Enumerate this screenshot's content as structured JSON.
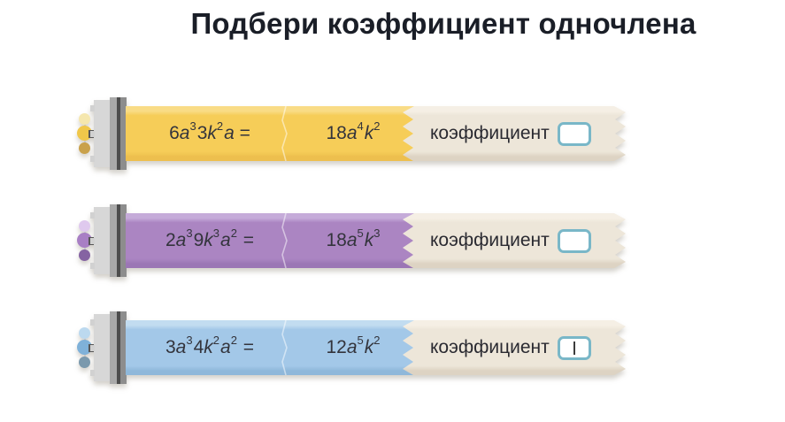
{
  "title": "Подбери коэффициент одночлена",
  "rows": [
    {
      "name": "yellow",
      "expr_left": [
        {
          "t": "6"
        },
        {
          "t": "a",
          "s": "it"
        },
        {
          "t": "3",
          "s": "sup"
        },
        {
          "t": "3"
        },
        {
          "t": "k",
          "s": "it"
        },
        {
          "t": "2",
          "s": "sup"
        },
        {
          "t": "a",
          "s": "it"
        },
        {
          "t": " ="
        }
      ],
      "expr_right": [
        {
          "t": "18"
        },
        {
          "t": "a",
          "s": "it"
        },
        {
          "t": "4",
          "s": "sup"
        },
        {
          "t": "k",
          "s": "it"
        },
        {
          "t": "2",
          "s": "sup"
        }
      ],
      "label": "коэффициент",
      "input_value": "",
      "focused": false,
      "theme": {
        "bar": "#f6cd58",
        "barTop": "#f9dc86",
        "barBottom": "#edbf4e",
        "dotTop": "#f5e7ae",
        "dotMid": "#f0c74a",
        "dotBottom": "#c9a14b"
      }
    },
    {
      "name": "purple",
      "expr_left": [
        {
          "t": "2"
        },
        {
          "t": "a",
          "s": "it"
        },
        {
          "t": "3",
          "s": "sup"
        },
        {
          "t": "9"
        },
        {
          "t": "k",
          "s": "it"
        },
        {
          "t": "3",
          "s": "sup"
        },
        {
          "t": "a",
          "s": "it"
        },
        {
          "t": "2",
          "s": "sup"
        },
        {
          "t": " ="
        }
      ],
      "expr_right": [
        {
          "t": "18"
        },
        {
          "t": "a",
          "s": "it"
        },
        {
          "t": "5",
          "s": "sup"
        },
        {
          "t": "k",
          "s": "it"
        },
        {
          "t": "3",
          "s": "sup"
        }
      ],
      "label": "коэффициент",
      "input_value": "",
      "focused": false,
      "theme": {
        "bar": "#ab85c2",
        "barTop": "#c5abd9",
        "barBottom": "#9b76b5",
        "dotTop": "#dfc9ee",
        "dotMid": "#a87fc4",
        "dotBottom": "#8563a2"
      }
    },
    {
      "name": "blue",
      "expr_left": [
        {
          "t": "3"
        },
        {
          "t": "a",
          "s": "it"
        },
        {
          "t": "3",
          "s": "sup"
        },
        {
          "t": "4"
        },
        {
          "t": "k",
          "s": "it"
        },
        {
          "t": "2",
          "s": "sup"
        },
        {
          "t": "a",
          "s": "it"
        },
        {
          "t": "2",
          "s": "sup"
        },
        {
          "t": " ="
        }
      ],
      "expr_right": [
        {
          "t": "12"
        },
        {
          "t": "a",
          "s": "it"
        },
        {
          "t": "5",
          "s": "sup"
        },
        {
          "t": "k",
          "s": "it"
        },
        {
          "t": "2",
          "s": "sup"
        }
      ],
      "label": "коэффициент",
      "input_value": "",
      "focused": true,
      "theme": {
        "bar": "#a3c8e8",
        "barTop": "#c2dcf0",
        "barBottom": "#8fb8da",
        "dotTop": "#bcd9ef",
        "dotMid": "#7fb1d9",
        "dotBottom": "#7b99ad"
      }
    }
  ],
  "colors": {
    "beige": "#ede6d9",
    "beige_top": "#f5efe5",
    "beige_bottom": "#ddd3c3",
    "input_border": "#79b7c8",
    "title_text": "#1a1e27",
    "expression_text": "#33343c"
  }
}
